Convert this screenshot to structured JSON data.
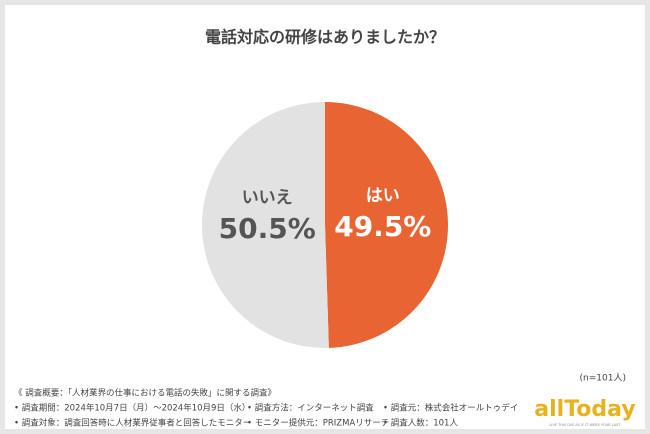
{
  "chart_data": {
    "type": "pie",
    "title": "電話対応の研修はありましたか？",
    "categories": [
      "はい",
      "いいえ"
    ],
    "values": [
      49.5,
      50.5
    ],
    "value_labels": [
      "49.5%",
      "50.5%"
    ],
    "colors": [
      "#e86432",
      "#e2e2e2"
    ],
    "label_colors": [
      "#ffffff",
      "#555555"
    ],
    "note": "(n=101人)"
  },
  "footer": {
    "notes": [
      "《 調査概要：「人材業界の仕事における電話の失敗」に関する調査》",
      "• 調査期間：2024年10月7日（月）〜2024年10月9日（水）",
      "• 調査方法：インターネット調査",
      "• 調査元：株式会社オールトゥデイ",
      "• 調査対象：調査回答時に人材業界従事者と回答したモニター",
      "• モニター提供元：PRIZMAリサーチ",
      "• 調査人数：101人"
    ],
    "logo": "allToday",
    "tagline": "LIVE THIS DAY AS IF IT WERE YOUR LAST"
  }
}
